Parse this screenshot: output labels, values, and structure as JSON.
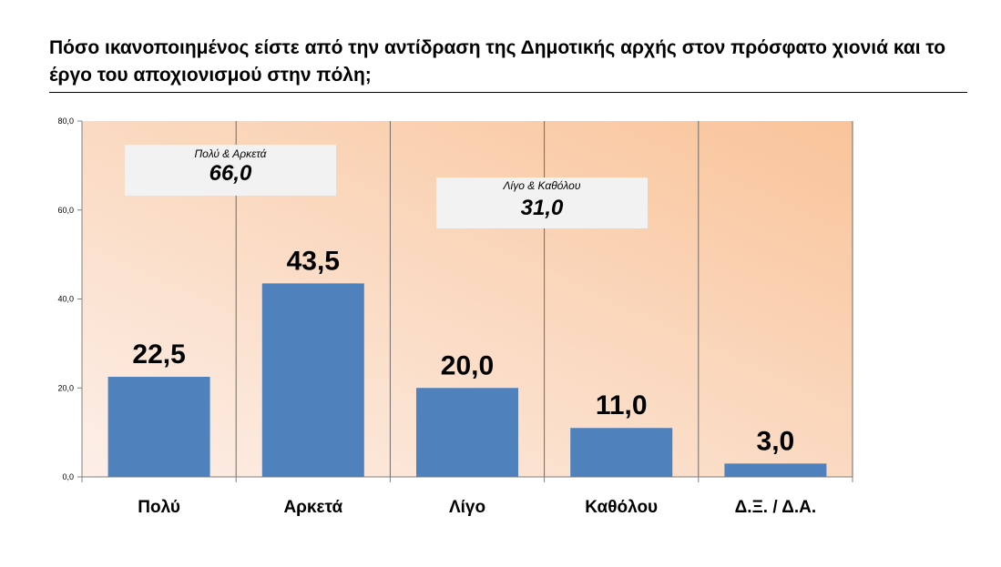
{
  "title": "Πόσο ικανοποιημένος είστε από την αντίδραση της Δημοτικής αρχής στον πρόσφατο χιονιά και το έργο του αποχιονισμού στην πόλη;",
  "callouts": [
    {
      "label": "Πολύ & Αρκετά",
      "value": "66,0"
    },
    {
      "label": "Λίγο & Καθόλου",
      "value": "31,0"
    }
  ],
  "colors": {
    "bar": "#4f81bd",
    "bg_light": "#fcefe8",
    "bg_peach": "#f9c49a"
  },
  "chart_data": {
    "type": "bar",
    "categories": [
      "Πολύ",
      "Αρκετά",
      "Λίγο",
      "Καθόλου",
      "Δ.Ξ. / Δ.Α."
    ],
    "values": [
      22.5,
      43.5,
      20.0,
      11.0,
      3.0
    ],
    "data_labels": [
      "22,5",
      "43,5",
      "20,0",
      "11,0",
      "3,0"
    ],
    "ylim": [
      0,
      80
    ],
    "yticks": [
      0,
      20,
      40,
      60,
      80
    ],
    "ytick_labels": [
      "0,0",
      "20,0",
      "40,0",
      "60,0",
      "80,0"
    ],
    "grid": false
  }
}
